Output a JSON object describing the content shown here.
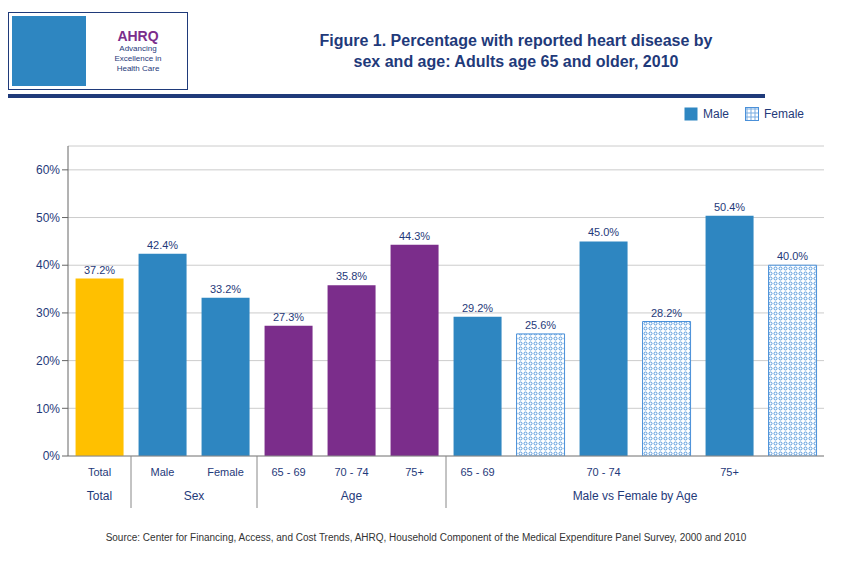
{
  "chart_data": {
    "type": "bar",
    "title": "Figure 1. Percentage with reported heart disease by\nsex and age: Adults age 65 and older, 2010",
    "annotations": [
      "AHRQ",
      "Advancing\nExcellence in\nHealth Care"
    ],
    "source": "Source: Center for Financing, Access, and Cost Trends, AHRQ, Household Component of the Medical Expenditure Panel Survey,  2000 and 2010",
    "categories": [
      "Total",
      "Male",
      "Female",
      "65 - 69",
      "70 - 74",
      "75+",
      "65 - 69",
      null,
      "70 - 74",
      null,
      "75+",
      null
    ],
    "groups": [
      "Total",
      "Sex",
      "Sex",
      "Age",
      "Age",
      "Age",
      "Male vs Female by Age",
      "Male vs Female by Age",
      "Male vs Female by Age",
      "Male vs Female by Age",
      "Male vs Female by Age",
      "Male vs Female by Age"
    ],
    "values": [
      37.2,
      42.4,
      33.2,
      27.3,
      35.8,
      44.3,
      29.2,
      25.6,
      45.0,
      28.2,
      50.4,
      40.0
    ],
    "value_labels": [
      "37.2%",
      "42.4%",
      "33.2%",
      "27.3%",
      "35.8%",
      "44.3%",
      "29.2%",
      "25.6%",
      "45.0%",
      "28.2%",
      "50.4%",
      "40.0%"
    ],
    "colors": [
      "#FFC000",
      "#2E86C1",
      "#2E86C1",
      "#7B2D8B",
      "#7B2D8B",
      "#7B2D8B",
      "#2E86C1",
      "#4A90D9",
      "#2E86C1",
      "#4A90D9",
      "#2E86C1",
      "#4A90D9"
    ],
    "legend_entries": [
      {
        "name": "Male",
        "color": "#2E86C1"
      },
      {
        "name": "Female",
        "color": "#4A90D9"
      }
    ],
    "legend": "upper right",
    "data_labels": true,
    "grid": true,
    "ylim": [
      0,
      65
    ],
    "yticks": [
      {
        "value": 0,
        "label": "0%"
      },
      {
        "value": 10,
        "label": "10%"
      },
      {
        "value": 20,
        "label": "20%"
      },
      {
        "value": 30,
        "label": "30%"
      },
      {
        "value": 40,
        "label": "40%"
      },
      {
        "value": 50,
        "label": "50%"
      },
      {
        "value": 60,
        "label": "60%"
      }
    ]
  }
}
